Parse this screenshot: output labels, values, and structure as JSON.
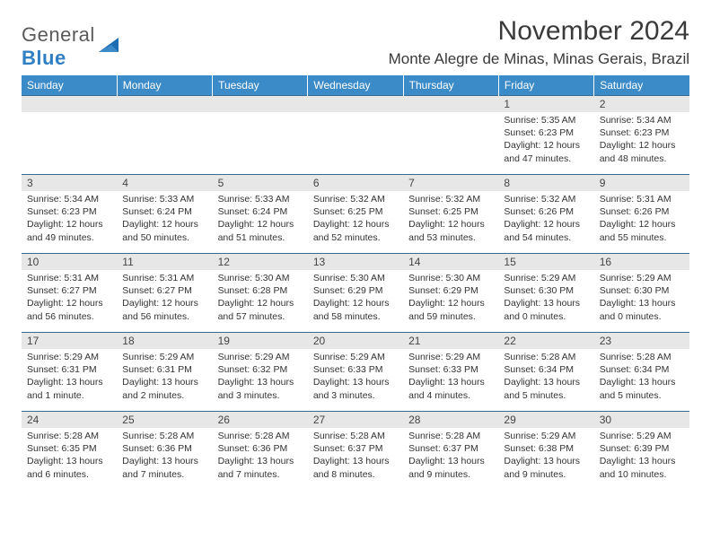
{
  "brand": {
    "top": "General",
    "bottom": "Blue"
  },
  "title": "November 2024",
  "location": "Monte Alegre de Minas, Minas Gerais, Brazil",
  "colors": {
    "header_bg": "#3c8bc9",
    "header_text": "#ffffff",
    "row_divider": "#3c6b8f",
    "daynum_bg": "#e7e7e7",
    "body_text": "#333333",
    "logo_gray": "#5a5a5a",
    "logo_blue": "#2f7fc2"
  },
  "weekdays": [
    "Sunday",
    "Monday",
    "Tuesday",
    "Wednesday",
    "Thursday",
    "Friday",
    "Saturday"
  ],
  "weeks": [
    [
      null,
      null,
      null,
      null,
      null,
      {
        "n": "1",
        "sr": "Sunrise: 5:35 AM",
        "ss": "Sunset: 6:23 PM",
        "dl": "Daylight: 12 hours and 47 minutes."
      },
      {
        "n": "2",
        "sr": "Sunrise: 5:34 AM",
        "ss": "Sunset: 6:23 PM",
        "dl": "Daylight: 12 hours and 48 minutes."
      }
    ],
    [
      {
        "n": "3",
        "sr": "Sunrise: 5:34 AM",
        "ss": "Sunset: 6:23 PM",
        "dl": "Daylight: 12 hours and 49 minutes."
      },
      {
        "n": "4",
        "sr": "Sunrise: 5:33 AM",
        "ss": "Sunset: 6:24 PM",
        "dl": "Daylight: 12 hours and 50 minutes."
      },
      {
        "n": "5",
        "sr": "Sunrise: 5:33 AM",
        "ss": "Sunset: 6:24 PM",
        "dl": "Daylight: 12 hours and 51 minutes."
      },
      {
        "n": "6",
        "sr": "Sunrise: 5:32 AM",
        "ss": "Sunset: 6:25 PM",
        "dl": "Daylight: 12 hours and 52 minutes."
      },
      {
        "n": "7",
        "sr": "Sunrise: 5:32 AM",
        "ss": "Sunset: 6:25 PM",
        "dl": "Daylight: 12 hours and 53 minutes."
      },
      {
        "n": "8",
        "sr": "Sunrise: 5:32 AM",
        "ss": "Sunset: 6:26 PM",
        "dl": "Daylight: 12 hours and 54 minutes."
      },
      {
        "n": "9",
        "sr": "Sunrise: 5:31 AM",
        "ss": "Sunset: 6:26 PM",
        "dl": "Daylight: 12 hours and 55 minutes."
      }
    ],
    [
      {
        "n": "10",
        "sr": "Sunrise: 5:31 AM",
        "ss": "Sunset: 6:27 PM",
        "dl": "Daylight: 12 hours and 56 minutes."
      },
      {
        "n": "11",
        "sr": "Sunrise: 5:31 AM",
        "ss": "Sunset: 6:27 PM",
        "dl": "Daylight: 12 hours and 56 minutes."
      },
      {
        "n": "12",
        "sr": "Sunrise: 5:30 AM",
        "ss": "Sunset: 6:28 PM",
        "dl": "Daylight: 12 hours and 57 minutes."
      },
      {
        "n": "13",
        "sr": "Sunrise: 5:30 AM",
        "ss": "Sunset: 6:29 PM",
        "dl": "Daylight: 12 hours and 58 minutes."
      },
      {
        "n": "14",
        "sr": "Sunrise: 5:30 AM",
        "ss": "Sunset: 6:29 PM",
        "dl": "Daylight: 12 hours and 59 minutes."
      },
      {
        "n": "15",
        "sr": "Sunrise: 5:29 AM",
        "ss": "Sunset: 6:30 PM",
        "dl": "Daylight: 13 hours and 0 minutes."
      },
      {
        "n": "16",
        "sr": "Sunrise: 5:29 AM",
        "ss": "Sunset: 6:30 PM",
        "dl": "Daylight: 13 hours and 0 minutes."
      }
    ],
    [
      {
        "n": "17",
        "sr": "Sunrise: 5:29 AM",
        "ss": "Sunset: 6:31 PM",
        "dl": "Daylight: 13 hours and 1 minute."
      },
      {
        "n": "18",
        "sr": "Sunrise: 5:29 AM",
        "ss": "Sunset: 6:31 PM",
        "dl": "Daylight: 13 hours and 2 minutes."
      },
      {
        "n": "19",
        "sr": "Sunrise: 5:29 AM",
        "ss": "Sunset: 6:32 PM",
        "dl": "Daylight: 13 hours and 3 minutes."
      },
      {
        "n": "20",
        "sr": "Sunrise: 5:29 AM",
        "ss": "Sunset: 6:33 PM",
        "dl": "Daylight: 13 hours and 3 minutes."
      },
      {
        "n": "21",
        "sr": "Sunrise: 5:29 AM",
        "ss": "Sunset: 6:33 PM",
        "dl": "Daylight: 13 hours and 4 minutes."
      },
      {
        "n": "22",
        "sr": "Sunrise: 5:28 AM",
        "ss": "Sunset: 6:34 PM",
        "dl": "Daylight: 13 hours and 5 minutes."
      },
      {
        "n": "23",
        "sr": "Sunrise: 5:28 AM",
        "ss": "Sunset: 6:34 PM",
        "dl": "Daylight: 13 hours and 5 minutes."
      }
    ],
    [
      {
        "n": "24",
        "sr": "Sunrise: 5:28 AM",
        "ss": "Sunset: 6:35 PM",
        "dl": "Daylight: 13 hours and 6 minutes."
      },
      {
        "n": "25",
        "sr": "Sunrise: 5:28 AM",
        "ss": "Sunset: 6:36 PM",
        "dl": "Daylight: 13 hours and 7 minutes."
      },
      {
        "n": "26",
        "sr": "Sunrise: 5:28 AM",
        "ss": "Sunset: 6:36 PM",
        "dl": "Daylight: 13 hours and 7 minutes."
      },
      {
        "n": "27",
        "sr": "Sunrise: 5:28 AM",
        "ss": "Sunset: 6:37 PM",
        "dl": "Daylight: 13 hours and 8 minutes."
      },
      {
        "n": "28",
        "sr": "Sunrise: 5:28 AM",
        "ss": "Sunset: 6:37 PM",
        "dl": "Daylight: 13 hours and 9 minutes."
      },
      {
        "n": "29",
        "sr": "Sunrise: 5:29 AM",
        "ss": "Sunset: 6:38 PM",
        "dl": "Daylight: 13 hours and 9 minutes."
      },
      {
        "n": "30",
        "sr": "Sunrise: 5:29 AM",
        "ss": "Sunset: 6:39 PM",
        "dl": "Daylight: 13 hours and 10 minutes."
      }
    ]
  ]
}
